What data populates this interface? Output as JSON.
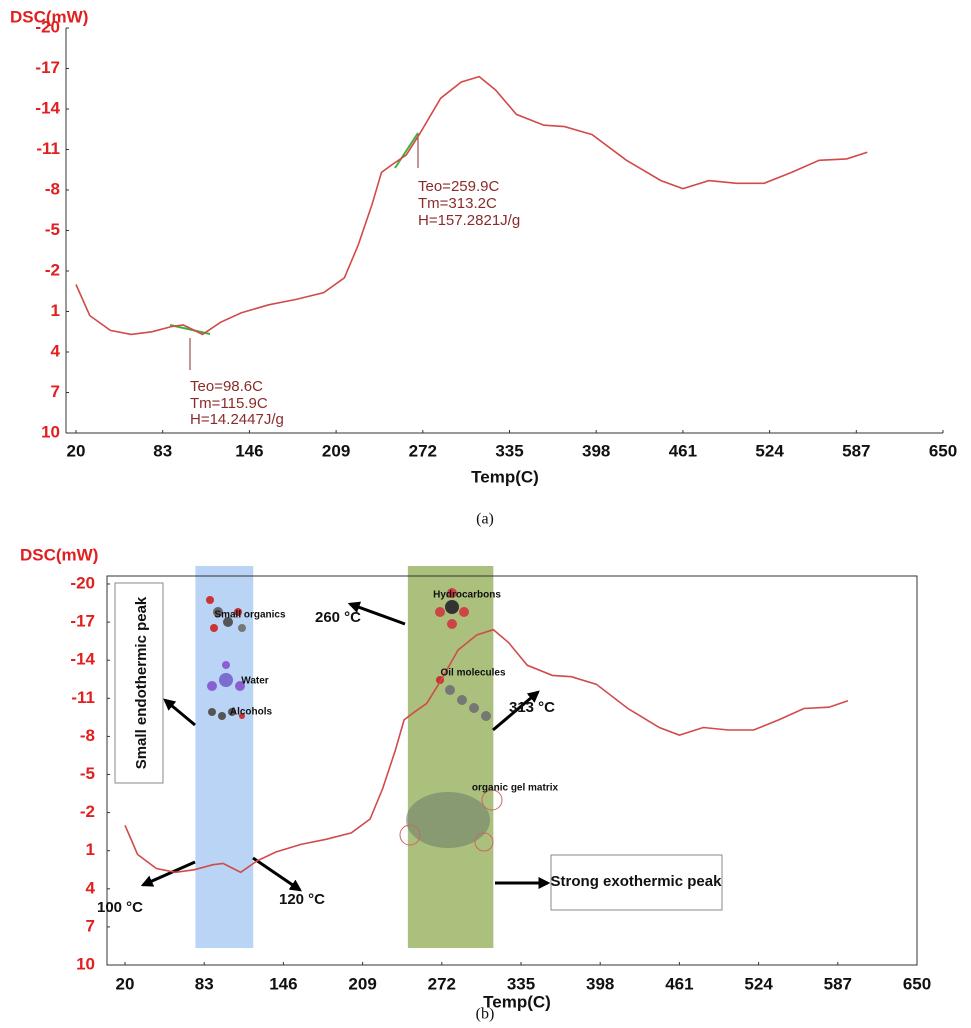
{
  "chart_data": [
    {
      "type": "line",
      "caption": "(a)",
      "ylabel": "DSC(mW)",
      "xlabel": "Temp(C)",
      "xlim": [
        20,
        650
      ],
      "xticks": [
        20,
        83,
        146,
        209,
        272,
        335,
        398,
        461,
        524,
        587,
        650
      ],
      "ylim": [
        10,
        -20
      ],
      "yticks": [
        -20,
        -17,
        -14,
        -11,
        -8,
        -5,
        -2,
        1,
        4,
        7,
        10
      ],
      "color": "#d24a4a",
      "x": [
        20,
        30,
        45,
        60,
        75,
        90,
        98,
        106,
        112,
        125,
        140,
        160,
        180,
        200,
        215,
        225,
        235,
        242,
        250,
        260,
        270,
        285,
        300,
        313,
        325,
        340,
        360,
        375,
        395,
        420,
        445,
        461,
        480,
        500,
        520,
        540,
        560,
        580,
        595
      ],
      "values": [
        -1.0,
        1.3,
        2.4,
        2.7,
        2.5,
        2.1,
        2.0,
        2.4,
        2.7,
        1.8,
        1.1,
        0.5,
        0.1,
        -0.4,
        -1.5,
        -3.9,
        -6.9,
        -9.3,
        -9.9,
        -10.6,
        -12.2,
        -14.8,
        -16.0,
        -16.4,
        -15.4,
        -13.6,
        -12.8,
        -12.7,
        -12.1,
        -10.2,
        -8.7,
        -8.1,
        -8.7,
        -8.5,
        -8.5,
        -9.3,
        -10.2,
        -10.3,
        -10.8
      ],
      "annotations": [
        "Teo=259.9C",
        "Tm=313.2C",
        "H=157.2821J/g",
        "Teo=98.6C",
        "Tm=115.9C",
        "H=14.2447J/g"
      ]
    },
    {
      "type": "line",
      "caption": "(b)",
      "ylabel": "DSC(mW)",
      "xlabel": "Temp(C)",
      "xlim": [
        20,
        650
      ],
      "xticks": [
        20,
        83,
        146,
        209,
        272,
        335,
        398,
        461,
        524,
        587,
        650
      ],
      "ylim": [
        10,
        -20
      ],
      "yticks": [
        -20,
        -17,
        -14,
        -11,
        -8,
        -5,
        -2,
        1,
        4,
        7,
        10
      ],
      "color": "#d24a4a",
      "x": [
        20,
        30,
        45,
        60,
        75,
        90,
        98,
        106,
        112,
        125,
        140,
        160,
        180,
        200,
        215,
        225,
        235,
        242,
        250,
        260,
        270,
        285,
        300,
        313,
        325,
        340,
        360,
        375,
        395,
        420,
        445,
        461,
        480,
        500,
        520,
        540,
        560,
        580,
        595
      ],
      "values": [
        -1.0,
        1.3,
        2.4,
        2.7,
        2.5,
        2.1,
        2.0,
        2.4,
        2.7,
        1.8,
        1.1,
        0.5,
        0.1,
        -0.4,
        -1.5,
        -3.9,
        -6.9,
        -9.3,
        -9.9,
        -10.6,
        -12.2,
        -14.8,
        -16.0,
        -16.4,
        -15.4,
        -13.6,
        -12.8,
        -12.7,
        -12.1,
        -10.2,
        -8.7,
        -8.1,
        -8.7,
        -8.5,
        -8.5,
        -9.3,
        -10.2,
        -10.3,
        -10.8
      ],
      "bands": [
        {
          "x0": 76,
          "x1": 122,
          "color": "#aecdf3"
        },
        {
          "x0": 245,
          "x1": 313,
          "color": "#9bb565"
        }
      ],
      "annotations": [
        "Small endothermic peak",
        "Small organics",
        "Water",
        "Alcohols",
        "Hydrocarbons",
        "Oil molecules",
        "organic gel matrix",
        "260 °C",
        "313 °C",
        "100 °C",
        "120 °C",
        "Strong exothermic peak"
      ]
    }
  ]
}
